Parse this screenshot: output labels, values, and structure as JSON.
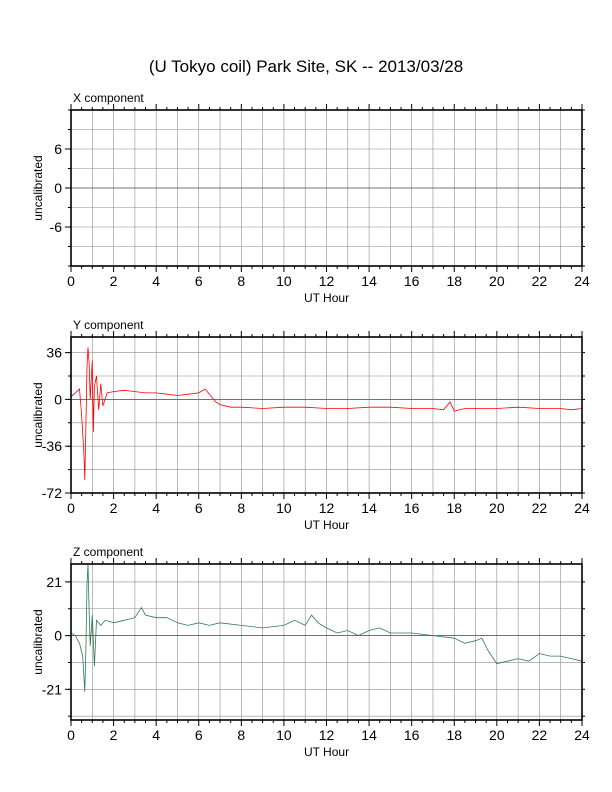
{
  "title": "(U Tokyo coil) Park Site, SK -- 2013/03/28",
  "chart_data": [
    {
      "type": "line",
      "panel_title": "X component",
      "xlabel": "UT Hour",
      "ylabel": "uncalibrated",
      "xlim": [
        0,
        24
      ],
      "ylim": [
        -12,
        12
      ],
      "xticks": [
        0,
        2,
        4,
        6,
        8,
        10,
        12,
        14,
        16,
        18,
        20,
        22,
        24
      ],
      "yticks": [
        -6,
        0,
        6
      ],
      "grid": true,
      "color": "#000000",
      "series": [
        {
          "x": [],
          "y": []
        }
      ]
    },
    {
      "type": "line",
      "panel_title": "Y component",
      "xlabel": "UT Hour",
      "ylabel": "uncalibrated",
      "xlim": [
        0,
        24
      ],
      "ylim": [
        -72,
        48
      ],
      "xticks": [
        0,
        2,
        4,
        6,
        8,
        10,
        12,
        14,
        16,
        18,
        20,
        22,
        24
      ],
      "yticks": [
        -72,
        -36,
        0,
        36
      ],
      "grid": true,
      "color": "#ff0000",
      "series": [
        {
          "x": [
            0,
            0.2,
            0.4,
            0.5,
            0.6,
            0.65,
            0.7,
            0.75,
            0.8,
            0.85,
            0.9,
            0.95,
            1.0,
            1.05,
            1.1,
            1.2,
            1.3,
            1.4,
            1.5,
            1.7,
            2.0,
            2.5,
            3.0,
            3.5,
            4.0,
            4.5,
            5.0,
            5.5,
            6.0,
            6.3,
            6.5,
            6.8,
            7.0,
            7.5,
            8.0,
            9.0,
            10.0,
            11.0,
            12.0,
            13.0,
            14.0,
            15.0,
            16.0,
            17.0,
            17.5,
            17.8,
            18.0,
            18.5,
            19.0,
            20.0,
            21.0,
            22.0,
            23.0,
            23.5,
            24.0
          ],
          "y": [
            2,
            5,
            8,
            -12,
            -40,
            -62,
            -20,
            25,
            40,
            28,
            0,
            15,
            30,
            -25,
            10,
            18,
            -8,
            12,
            -5,
            5,
            6,
            7,
            6,
            5,
            5,
            4,
            3,
            4,
            5,
            8,
            4,
            -2,
            -4,
            -6,
            -6,
            -7,
            -6,
            -6,
            -7,
            -7,
            -6,
            -6,
            -7,
            -7,
            -8,
            -2,
            -9,
            -7,
            -7,
            -7,
            -6,
            -7,
            -7,
            -8,
            -7
          ]
        }
      ]
    },
    {
      "type": "line",
      "panel_title": "Z component",
      "xlabel": "UT Hour",
      "ylabel": "uncalibrated",
      "xlim": [
        0,
        24
      ],
      "ylim": [
        -33,
        28
      ],
      "xticks": [
        0,
        2,
        4,
        6,
        8,
        10,
        12,
        14,
        16,
        18,
        20,
        22,
        24
      ],
      "yticks": [
        -21,
        0,
        21
      ],
      "grid": true,
      "color": "#2e7d4f",
      "series": [
        {
          "x": [
            0,
            0.2,
            0.4,
            0.55,
            0.65,
            0.7,
            0.75,
            0.8,
            0.85,
            0.9,
            1.0,
            1.1,
            1.2,
            1.4,
            1.6,
            2.0,
            2.5,
            3.0,
            3.3,
            3.5,
            4.0,
            4.5,
            5.0,
            5.5,
            6.0,
            6.5,
            7.0,
            8.0,
            9.0,
            10.0,
            10.5,
            11.0,
            11.3,
            11.6,
            12.0,
            12.5,
            13.0,
            13.5,
            14.0,
            14.5,
            15.0,
            16.0,
            17.0,
            18.0,
            18.5,
            19.0,
            19.3,
            19.6,
            20.0,
            20.5,
            21.0,
            21.5,
            22.0,
            22.5,
            23.0,
            23.5,
            24.0
          ],
          "y": [
            1,
            0,
            -3,
            -8,
            -22,
            -5,
            20,
            28,
            10,
            -4,
            8,
            -12,
            6,
            4,
            6,
            5,
            6,
            7,
            11,
            8,
            7,
            7,
            5,
            4,
            5,
            4,
            5,
            4,
            3,
            4,
            6,
            4,
            8,
            5,
            3,
            1,
            2,
            0,
            2,
            3,
            1,
            1,
            0,
            -1,
            -3,
            -2,
            -1,
            -6,
            -11,
            -10,
            -9,
            -10,
            -7,
            -8,
            -8,
            -9,
            -10
          ]
        }
      ]
    }
  ]
}
